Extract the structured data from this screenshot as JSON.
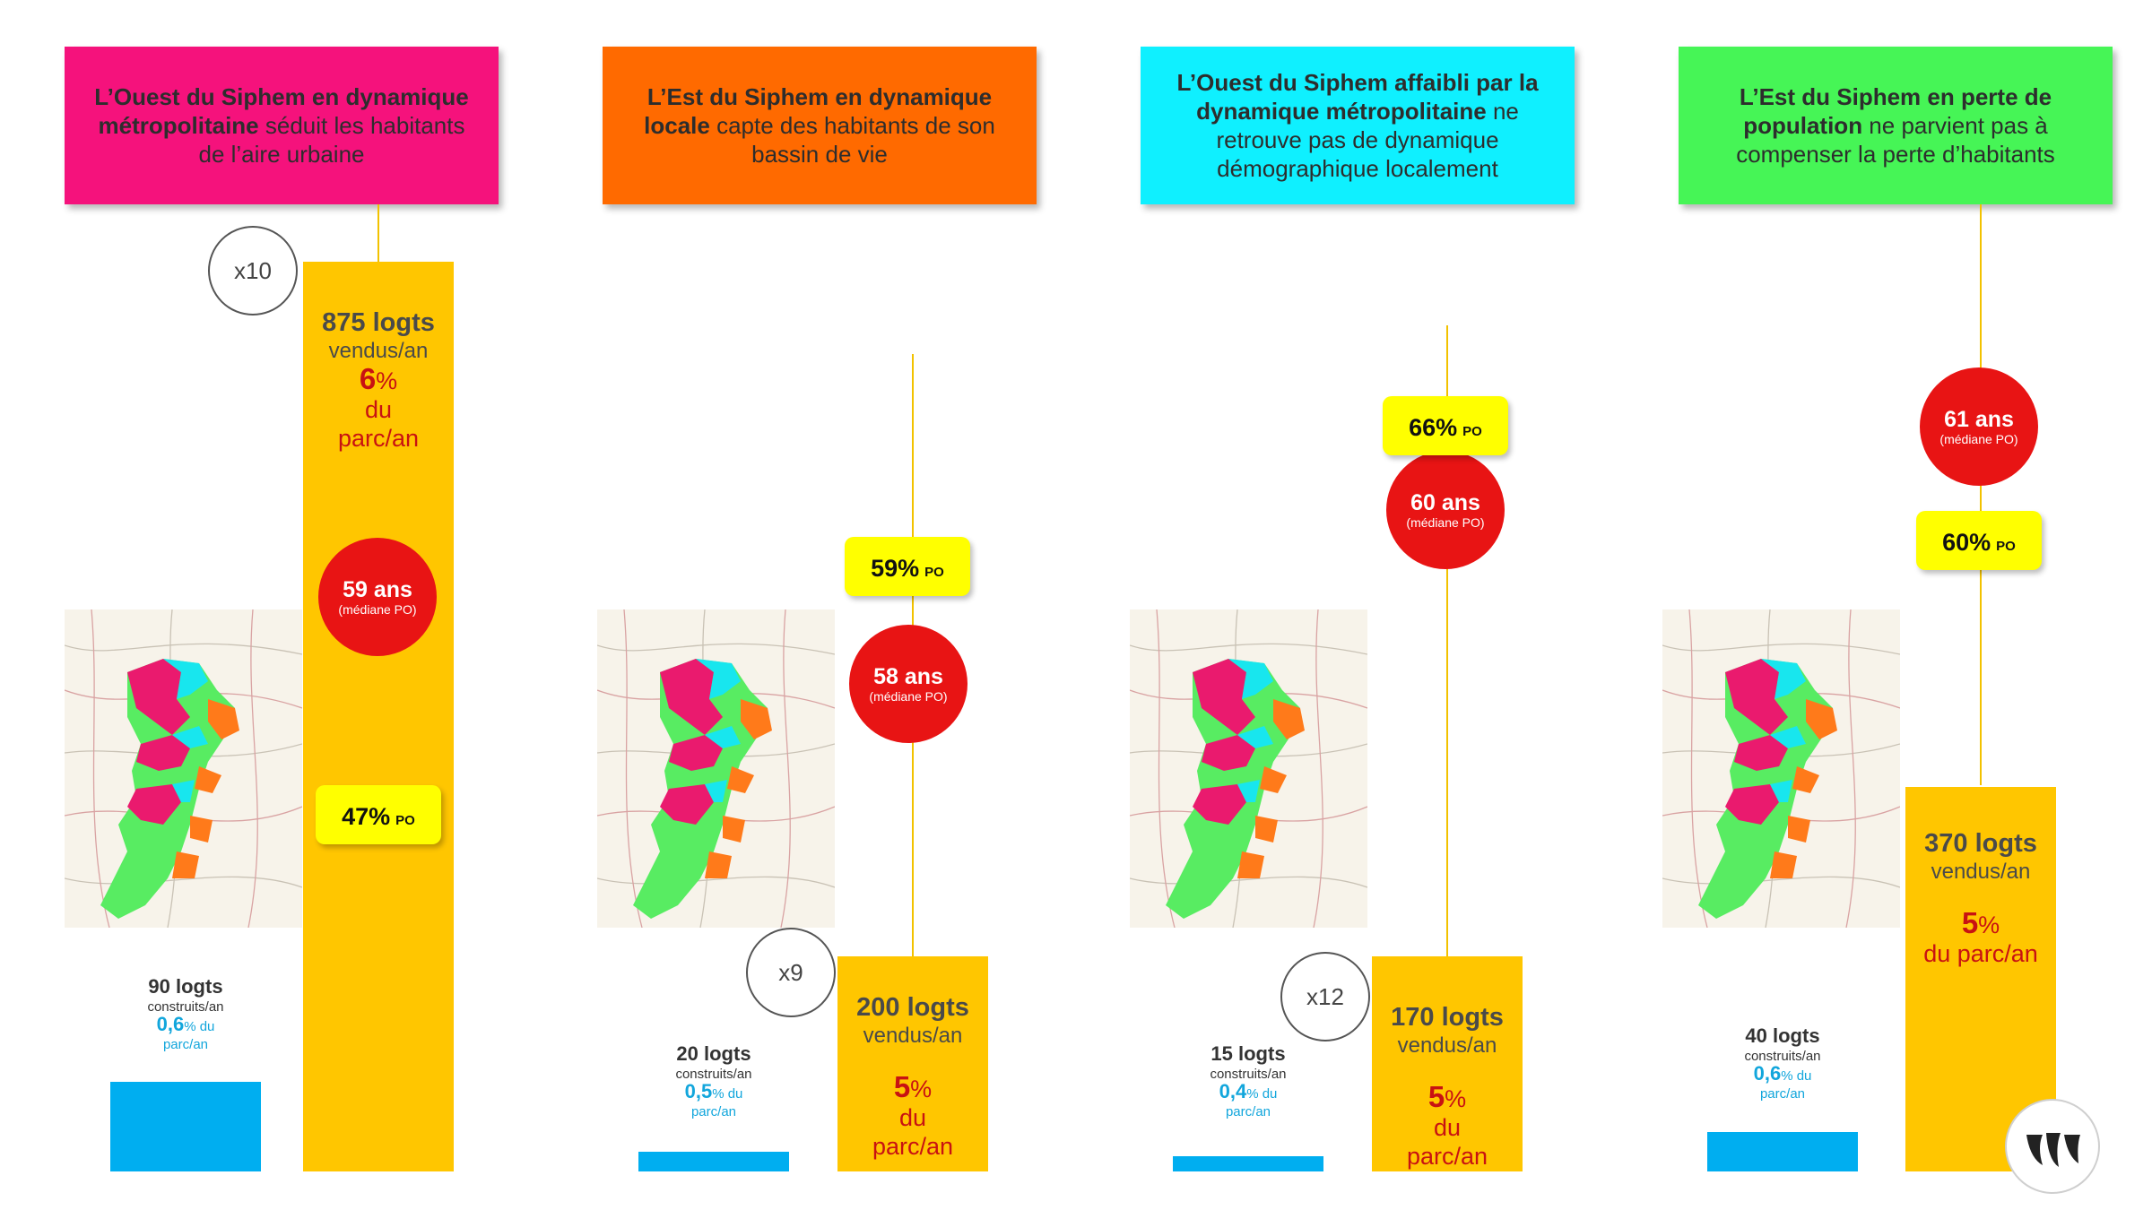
{
  "panels": [
    {
      "header_bold_1": "L’Ouest du Siphem en dynamique métropolitaine",
      "header_rest": " séduit les habitants de l’aire urbaine",
      "header_color": "#f5127c",
      "multiplier": "x10",
      "sold": {
        "num": "875 logts",
        "unit": "vendus/an",
        "pct": "6",
        "pct_suffix": "%",
        "share_rest": "du parc/an"
      },
      "age": {
        "value": "59 ans",
        "label": "(médiane PO)"
      },
      "po": {
        "pct": "47%",
        "label": "PO"
      },
      "built": {
        "num": "90 logts",
        "unit": "construits/an",
        "pct": "0,6",
        "pct_suffix": "% du",
        "share_rest": "parc/an"
      }
    },
    {
      "header_bold_1": "L’Est du Siphem en dynamique locale",
      "header_rest": " capte des habitants de son bassin de vie",
      "header_color": "#ff6a00",
      "multiplier": "x9",
      "sold": {
        "num": "200 logts",
        "unit": "vendus/an",
        "pct": "5",
        "pct_suffix": "%",
        "share_rest": "du parc/an"
      },
      "age": {
        "value": "58 ans",
        "label": "(médiane PO)"
      },
      "po": {
        "pct": "59%",
        "label": "PO"
      },
      "built": {
        "num": "20 logts",
        "unit": "construits/an",
        "pct": "0,5",
        "pct_suffix": "% du",
        "share_rest": "parc/an"
      }
    },
    {
      "header_bold_1": "L’Ouest du Siphem affaibli par la dynamique métropolitaine",
      "header_rest": " ne retrouve pas de dynamique démographique localement",
      "header_color": "#0ff0ff",
      "multiplier": "x12",
      "sold": {
        "num": "170 logts",
        "unit": "vendus/an",
        "pct": "5",
        "pct_suffix": "%",
        "share_rest": "du parc/an"
      },
      "age": {
        "value": "60 ans",
        "label": "(médiane PO)"
      },
      "po": {
        "pct": "66%",
        "label": "PO"
      },
      "built": {
        "num": "15 logts",
        "unit": "construits/an",
        "pct": "0,4",
        "pct_suffix": "% du",
        "share_rest": "parc/an"
      }
    },
    {
      "header_bold_1": "L’Est du Siphem en perte de population",
      "header_rest": " ne parvient pas à compenser la perte d’habitants",
      "header_color": "#46f556",
      "multiplier": "",
      "sold": {
        "num": "370 logts",
        "unit": "vendus/an",
        "pct": "5",
        "pct_suffix": "%",
        "share_rest": "du parc/an"
      },
      "age": {
        "value": "61 ans",
        "label": "(médiane PO)"
      },
      "po": {
        "pct": "60%",
        "label": "PO"
      },
      "built": {
        "num": "40 logts",
        "unit": "construits/an",
        "pct": "0,6",
        "pct_suffix": "% du",
        "share_rest": "parc/an"
      }
    }
  ],
  "chart_data": {
    "type": "bar",
    "categories": [
      "L’Ouest du Siphem en dynamique métropolitaine",
      "L’Est du Siphem en dynamique locale",
      "L’Ouest du Siphem affaibli par la dynamique métropolitaine",
      "L’Est du Siphem en perte de population"
    ],
    "series": [
      {
        "name": "vendus/an",
        "values": [
          875,
          200,
          170,
          370
        ]
      },
      {
        "name": "construits/an",
        "values": [
          90,
          20,
          15,
          40
        ]
      }
    ],
    "title": "",
    "xlabel": "",
    "ylabel": "",
    "ylim": [
      0,
      875
    ],
    "grid": false,
    "colors": {
      "sold": "#ffc600",
      "built": "#00aef0",
      "age_circle": "#e81414",
      "po_badge": "#ffff00"
    }
  },
  "map_legend_colors": {
    "pink": "#ea1a6e",
    "cyan": "#18e6ee",
    "green": "#58ec62",
    "orange": "#ff7a1a"
  },
  "logo": {
    "name": "logo-icon"
  }
}
